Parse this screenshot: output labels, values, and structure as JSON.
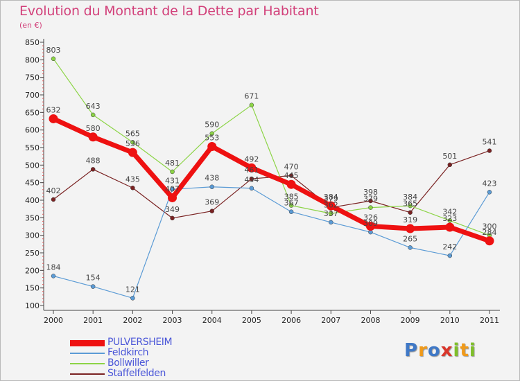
{
  "header": {
    "title": "Evolution du Montant de la Dette par Habitant",
    "subtitle": "(en €)"
  },
  "logo": {
    "letters": [
      {
        "char": "P",
        "color": "#3f78c6"
      },
      {
        "char": "r",
        "color": "#f09a1a"
      },
      {
        "char": "o",
        "color": "#3f78c6"
      },
      {
        "char": "x",
        "color": "#d9362b"
      },
      {
        "char": "i",
        "color": "#7fbf2a"
      },
      {
        "char": "t",
        "color": "#f09a1a"
      },
      {
        "char": "i",
        "color": "#7fbf2a"
      }
    ]
  },
  "chart_data": {
    "type": "line",
    "categories": [
      "2000",
      "2001",
      "2002",
      "2003",
      "2004",
      "2005",
      "2006",
      "2007",
      "2008",
      "2009",
      "2010",
      "2011"
    ],
    "ylim": [
      100,
      850
    ],
    "yticks": [
      100,
      150,
      200,
      250,
      300,
      350,
      400,
      450,
      500,
      550,
      600,
      650,
      700,
      750,
      800,
      850
    ],
    "grid": false,
    "legend_position": "bottom-left",
    "series": [
      {
        "name": "PULVERSHEIM",
        "color": "#ee1111",
        "values": [
          632,
          580,
          536,
          407,
          553,
          492,
          445,
          384,
          326,
          319,
          323,
          284
        ]
      },
      {
        "name": "Feldkirch",
        "color": "#5b9bd5",
        "values": [
          184,
          154,
          121,
          431,
          438,
          434,
          367,
          337,
          309,
          265,
          242,
          423
        ]
      },
      {
        "name": "Bollwiller",
        "color": "#8cd446",
        "values": [
          803,
          643,
          565,
          481,
          590,
          671,
          385,
          362,
          379,
          384,
          342,
          300
        ]
      },
      {
        "name": "Staffelfelden",
        "color": "#7a2222",
        "values": [
          402,
          488,
          435,
          349,
          369,
          461,
          470,
          379,
          398,
          365,
          501,
          541
        ]
      }
    ]
  }
}
